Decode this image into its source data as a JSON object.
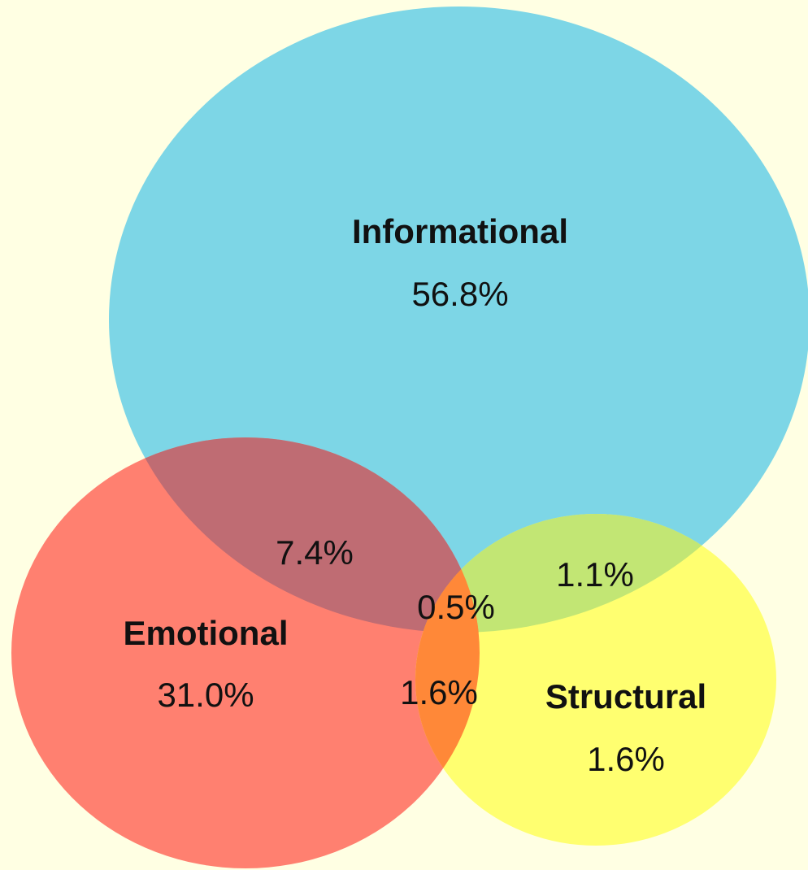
{
  "chart_data": {
    "type": "venn",
    "sets": [
      {
        "name": "Informational",
        "value": 56.8,
        "value_label": "56.8%",
        "color": "#7dd6e6"
      },
      {
        "name": "Emotional",
        "value": 31.0,
        "value_label": "31.0%",
        "color": "#ff8070"
      },
      {
        "name": "Structural",
        "value": 1.6,
        "value_label": "1.6%",
        "color": "#ffff70"
      }
    ],
    "intersections": [
      {
        "sets": [
          0,
          1
        ],
        "value": 7.4,
        "value_label": "7.4%",
        "color": "#bf6c73"
      },
      {
        "sets": [
          0,
          2
        ],
        "value": 1.1,
        "value_label": "1.1%",
        "color": "#c2e674"
      },
      {
        "sets": [
          1,
          2
        ],
        "value": 1.6,
        "value_label": "1.6%",
        "color": "#ff8838"
      },
      {
        "sets": [
          0,
          1,
          2
        ],
        "value": 0.5,
        "value_label": "0.5%",
        "color": "#ff8838"
      }
    ]
  }
}
